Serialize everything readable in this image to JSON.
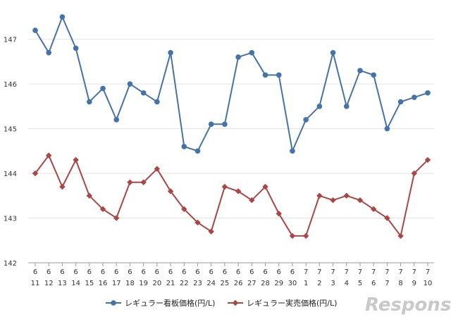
{
  "chart_data": {
    "type": "line",
    "title": "",
    "xlabel": "",
    "ylabel": "",
    "ylim": [
      142,
      147.5
    ],
    "yticks": [
      142,
      143,
      144,
      145,
      146,
      147
    ],
    "grid": true,
    "legend_position": "bottom",
    "categories": [
      [
        "6",
        "11"
      ],
      [
        "6",
        "12"
      ],
      [
        "6",
        "13"
      ],
      [
        "6",
        "14"
      ],
      [
        "6",
        "15"
      ],
      [
        "6",
        "16"
      ],
      [
        "6",
        "17"
      ],
      [
        "6",
        "18"
      ],
      [
        "6",
        "19"
      ],
      [
        "6",
        "20"
      ],
      [
        "6",
        "21"
      ],
      [
        "6",
        "22"
      ],
      [
        "6",
        "23"
      ],
      [
        "6",
        "24"
      ],
      [
        "6",
        "25"
      ],
      [
        "6",
        "26"
      ],
      [
        "6",
        "27"
      ],
      [
        "6",
        "28"
      ],
      [
        "6",
        "29"
      ],
      [
        "6",
        "30"
      ],
      [
        "7",
        "1"
      ],
      [
        "7",
        "2"
      ],
      [
        "7",
        "3"
      ],
      [
        "7",
        "4"
      ],
      [
        "7",
        "5"
      ],
      [
        "7",
        "6"
      ],
      [
        "7",
        "7"
      ],
      [
        "7",
        "8"
      ],
      [
        "7",
        "9"
      ],
      [
        "7",
        "10"
      ]
    ],
    "series": [
      {
        "name": "レギュラー看板価格(円/L)",
        "color": "#4572A7",
        "marker": "circle",
        "values": [
          147.2,
          146.7,
          147.5,
          146.8,
          145.6,
          145.9,
          145.2,
          146.0,
          145.8,
          145.6,
          146.7,
          144.6,
          144.5,
          145.1,
          145.1,
          146.6,
          146.7,
          146.2,
          146.2,
          144.5,
          145.2,
          145.5,
          146.7,
          145.5,
          146.3,
          146.2,
          145.0,
          145.6,
          145.7,
          145.8
        ]
      },
      {
        "name": "レギュラー実売価格(円/L)",
        "color": "#AA4643",
        "marker": "diamond",
        "values": [
          144.0,
          144.4,
          143.7,
          144.3,
          143.5,
          143.2,
          143.0,
          143.8,
          143.8,
          144.1,
          143.6,
          143.2,
          142.9,
          142.7,
          143.7,
          143.6,
          143.4,
          143.7,
          143.1,
          142.6,
          142.6,
          143.5,
          143.4,
          143.5,
          143.4,
          143.2,
          143.0,
          142.6,
          144.0,
          144.3
        ]
      }
    ]
  },
  "watermark": {
    "text": "Response.",
    "color": "#c9c9c9"
  }
}
